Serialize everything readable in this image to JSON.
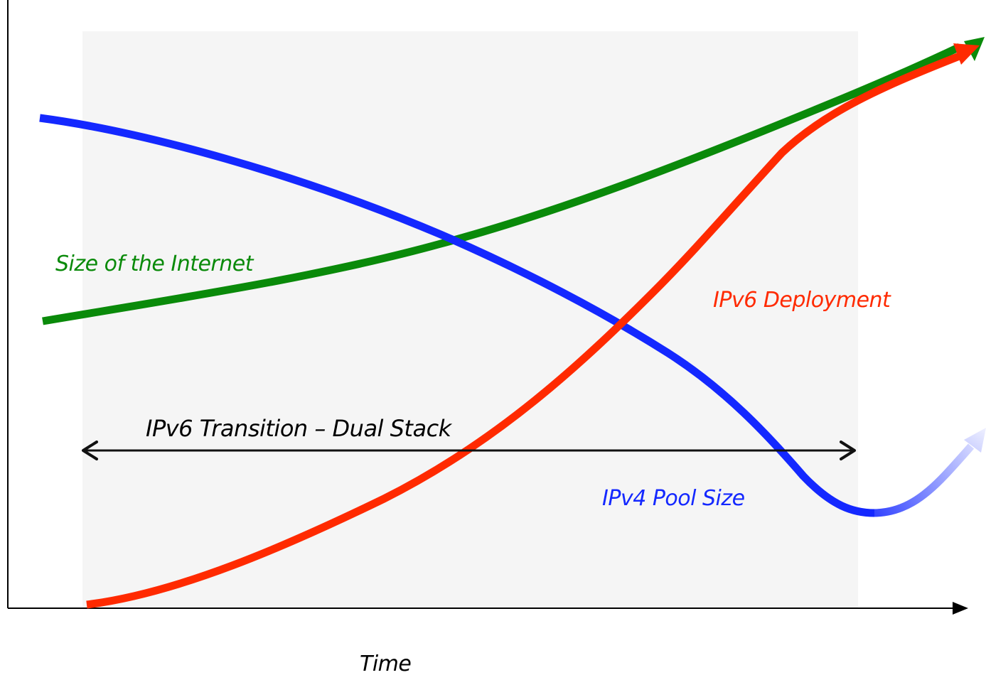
{
  "diagram": {
    "series": [
      {
        "id": "internet",
        "label": "Size of the Internet",
        "color": "#0a8a0a"
      },
      {
        "id": "ipv6",
        "label": "IPv6 Deployment",
        "color": "#ff2a00"
      },
      {
        "id": "ipv4",
        "label": "IPv4 Pool Size",
        "color": "#1428ff"
      }
    ],
    "transition_label": "IPv6 Transition – Dual Stack",
    "x_axis_label": "Time",
    "colors": {
      "axis": "#000000",
      "transition_band": "#f5f5f5",
      "transition_arrow": "#111111"
    }
  }
}
